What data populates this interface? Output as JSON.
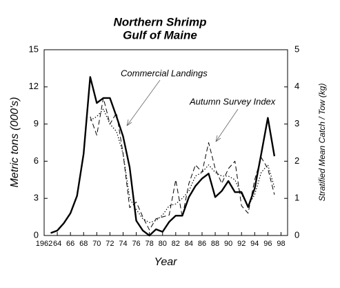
{
  "chart_data": {
    "type": "line",
    "title": [
      "Northern Shrimp",
      "Gulf of Maine"
    ],
    "xlabel": "Year",
    "ylabel": "Metric tons (000's)",
    "y2label": "Stratified Mean Catch / Tow (kg)",
    "annotations": [
      "Commercial Landings",
      "Autumn Survey Index"
    ],
    "xlim": [
      62,
      99
    ],
    "xticks": [
      {
        "value": 62,
        "label": "1962"
      },
      64,
      66,
      68,
      70,
      72,
      74,
      76,
      78,
      80,
      82,
      84,
      86,
      88,
      90,
      92,
      94,
      96,
      98
    ],
    "ylim": [
      0,
      15
    ],
    "yticks": [
      0,
      3,
      6,
      9,
      12,
      15
    ],
    "y2lim": [
      0,
      5
    ],
    "y2ticks": [
      0,
      1,
      2,
      3,
      4,
      5
    ],
    "series": [
      {
        "name": "Commercial Landings",
        "color": "#000000",
        "style": "solid",
        "x": [
          63,
          64,
          65,
          66,
          67,
          68,
          69,
          70,
          71,
          72,
          73,
          74,
          75,
          76,
          77,
          78,
          79,
          80,
          81,
          82,
          83,
          84,
          85,
          86,
          87,
          88,
          89,
          90,
          91,
          92,
          93,
          94,
          95,
          96,
          97
        ],
        "values": [
          0.2,
          0.4,
          1.0,
          1.8,
          3.2,
          6.6,
          12.8,
          10.7,
          11.1,
          11.1,
          9.6,
          8.0,
          5.5,
          1.2,
          0.4,
          0.0,
          0.5,
          0.3,
          1.1,
          1.6,
          1.6,
          3.1,
          4.0,
          4.6,
          5.0,
          3.1,
          3.6,
          4.4,
          3.5,
          3.5,
          2.3,
          3.8,
          6.6,
          9.5,
          6.4
        ]
      },
      {
        "name": "Autumn Survey Index",
        "color": "#000000",
        "style": "dashed",
        "axis": "y2",
        "x": [
          69,
          70,
          71,
          72,
          73,
          74,
          75,
          76,
          77,
          78,
          79,
          80,
          81,
          82,
          83,
          84,
          85,
          86,
          87,
          88,
          89,
          90,
          91,
          92,
          93,
          94,
          95,
          96,
          97
        ],
        "values": [
          3.2,
          2.7,
          3.7,
          3.0,
          3.3,
          2.2,
          0.75,
          0.9,
          0.5,
          0.15,
          0.45,
          0.5,
          0.55,
          1.5,
          0.5,
          1.4,
          1.9,
          1.7,
          2.5,
          1.8,
          1.4,
          1.8,
          2.0,
          0.8,
          0.6,
          1.5,
          2.1,
          1.8,
          1.1
        ]
      },
      {
        "color": "#000000",
        "style": "dotted",
        "axis": "y2",
        "x": [
          69,
          70,
          71,
          72,
          73,
          74,
          75,
          76,
          77,
          78,
          79,
          80,
          81,
          82,
          83,
          84,
          85,
          86,
          87,
          88,
          89,
          90,
          91,
          92,
          93,
          94,
          95,
          96,
          97
        ],
        "values": [
          3.1,
          3.2,
          3.4,
          3.0,
          2.8,
          2.2,
          1.0,
          0.7,
          0.45,
          0.35,
          0.4,
          0.55,
          0.8,
          0.85,
          1.0,
          1.2,
          1.6,
          1.7,
          1.9,
          1.7,
          1.6,
          1.6,
          1.5,
          1.1,
          0.8,
          1.1,
          1.7,
          1.9,
          1.3
        ]
      }
    ]
  }
}
